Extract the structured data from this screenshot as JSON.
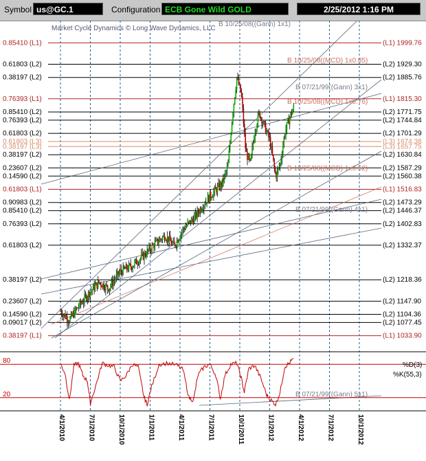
{
  "header": {
    "symbol_label": "Symbol",
    "symbol_value": "us@GC.1",
    "config_label": "Configuration",
    "config_value": "ECB Gone Wild GOLD",
    "datetime": "2/25/2012 1:16 PM"
  },
  "colors": {
    "l1": "#b22222",
    "l2": "#000000",
    "l3": "#d98c6a",
    "price_up": "#00b000",
    "price_down": "#c00000",
    "oscillator": "#c00000",
    "grid": "#1f5f8b",
    "annotation_gray": "#7a7a8a",
    "annotation_red": "#c87060"
  },
  "chart_data": {
    "type": "candlestick",
    "title": "Market Cycle Dynamics © Long Wave Dynamics, LLC",
    "ylim": [
      990,
      2055
    ],
    "x_ticks": [
      "4/1/2010",
      "7/1/2010",
      "10/1/2010",
      "1/1/2011",
      "4/1/2011",
      "7/1/2011",
      "10/1/2011",
      "1/1/2012",
      "4/1/2012",
      "7/1/2012",
      "10/1/2012"
    ],
    "levels": [
      {
        "fib": "0.85410",
        "tag": "L1",
        "price": 1999.76,
        "right": "(L1) 1999.76"
      },
      {
        "fib": "0.61803",
        "tag": "L2",
        "price": 1929.3,
        "right": "(L2) 1929.30"
      },
      {
        "fib": "0.38197",
        "tag": "L2",
        "price": 1885.76,
        "right": "(L2) 1885.76"
      },
      {
        "fib": "0.76393",
        "tag": "L1",
        "price": 1815.3,
        "right": "(L1) 1815.30"
      },
      {
        "fib": "0.85410",
        "tag": "L2",
        "price": 1771.75,
        "right": "(L2) 1771.75"
      },
      {
        "fib": "0.76393",
        "tag": "L2",
        "price": 1744.84,
        "right": "(L2) 1744.84"
      },
      {
        "fib": "0.61803",
        "tag": "L2",
        "price": 1701.29,
        "right": "(L2) 1701.29"
      },
      {
        "fib": "0.61803",
        "tag": "L3",
        "price": 1674.38,
        "right": "(L3) 1674.38"
      },
      {
        "fib": "0.38197",
        "tag": "L3",
        "price": 1657.75,
        "right": "(L3) 1657.75"
      },
      {
        "fib": "0.38197",
        "tag": "L2",
        "price": 1630.84,
        "right": "(L2) 1630.84"
      },
      {
        "fib": "0.23607",
        "tag": "L2",
        "price": 1587.29,
        "right": "(L2) 1587.29"
      },
      {
        "fib": "0.14590",
        "tag": "L2",
        "price": 1560.38,
        "right": "(L2) 1560.38"
      },
      {
        "fib": "0.61803",
        "tag": "L1",
        "price": 1516.83,
        "right": "(L1) 1516.83"
      },
      {
        "fib": "0.90983",
        "tag": "L2",
        "price": 1473.29,
        "right": "(L2) 1473.29"
      },
      {
        "fib": "0.85410",
        "tag": "L2",
        "price": 1446.37,
        "right": "(L2) 1446.37"
      },
      {
        "fib": "0.76393",
        "tag": "L2",
        "price": 1402.83,
        "right": "(L2) 1402.83"
      },
      {
        "fib": "0.61803",
        "tag": "L2",
        "price": 1332.37,
        "right": "(L2) 1332.37"
      },
      {
        "fib": "0.38197",
        "tag": "L2",
        "price": 1218.36,
        "right": "(L2) 1218.36"
      },
      {
        "fib": "0.23607",
        "tag": "L2",
        "price": 1147.9,
        "right": "(L2) 1147.90"
      },
      {
        "fib": "0.14590",
        "tag": "L2",
        "price": 1104.36,
        "right": "(L2) 1104.36"
      },
      {
        "fib": "0.09017",
        "tag": "L2",
        "price": 1077.45,
        "right": "(L2) 1077.45"
      },
      {
        "fib": "0.38197",
        "tag": "L1",
        "price": 1033.9,
        "right": "(L1) 1033.90"
      }
    ],
    "annotations": [
      {
        "text": "B 10/25/08((Gann) 1x1)",
        "color": "gray"
      },
      {
        "text": "B 10/25/08((MCD) 1x0.85)",
        "color": "red"
      },
      {
        "text": "B 07/21/99((Gann) 3x1)",
        "color": "gray"
      },
      {
        "text": "B 10/25/08((MCD) 1x0.76)",
        "color": "red"
      },
      {
        "text": "B 10/25/08((MCD) 1x0.62)",
        "color": "red"
      },
      {
        "text": "B 07/21/99((Gann) 4x1)",
        "color": "gray"
      },
      {
        "text": "B 07/21/99((Gann) 5x1)",
        "color": "gray"
      }
    ],
    "price_path": [
      [
        0.0,
        1115
      ],
      [
        0.3,
        1085
      ],
      [
        0.6,
        1130
      ],
      [
        1.0,
        1180
      ],
      [
        1.3,
        1210
      ],
      [
        1.6,
        1190
      ],
      [
        2.0,
        1245
      ],
      [
        2.4,
        1265
      ],
      [
        2.8,
        1300
      ],
      [
        3.2,
        1340
      ],
      [
        3.5,
        1365
      ],
      [
        3.8,
        1330
      ],
      [
        4.1,
        1385
      ],
      [
        4.5,
        1425
      ],
      [
        4.8,
        1470
      ],
      [
        5.1,
        1505
      ],
      [
        5.4,
        1535
      ],
      [
        5.6,
        1590
      ],
      [
        5.75,
        1760
      ],
      [
        5.9,
        1885
      ],
      [
        6.05,
        1830
      ],
      [
        6.2,
        1640
      ],
      [
        6.35,
        1600
      ],
      [
        6.5,
        1710
      ],
      [
        6.65,
        1770
      ],
      [
        6.8,
        1730
      ],
      [
        7.0,
        1680
      ],
      [
        7.2,
        1560
      ],
      [
        7.35,
        1600
      ],
      [
        7.5,
        1700
      ],
      [
        7.65,
        1750
      ],
      [
        7.8,
        1785
      ]
    ],
    "oscillator": {
      "labels": [
        "80",
        "20"
      ],
      "legend_d": "%D(3)",
      "legend_k": "%K(55,3)",
      "k_path": [
        [
          0.0,
          80
        ],
        [
          0.15,
          65
        ],
        [
          0.3,
          15
        ],
        [
          0.45,
          78
        ],
        [
          0.6,
          82
        ],
        [
          0.75,
          60
        ],
        [
          0.9,
          50
        ],
        [
          1.0,
          10
        ],
        [
          1.2,
          45
        ],
        [
          1.4,
          82
        ],
        [
          1.6,
          78
        ],
        [
          1.8,
          75
        ],
        [
          2.0,
          50
        ],
        [
          2.2,
          60
        ],
        [
          2.4,
          80
        ],
        [
          2.6,
          75
        ],
        [
          2.8,
          20
        ],
        [
          2.9,
          8
        ],
        [
          3.05,
          40
        ],
        [
          3.3,
          80
        ],
        [
          3.6,
          82
        ],
        [
          3.9,
          78
        ],
        [
          4.1,
          70
        ],
        [
          4.3,
          20
        ],
        [
          4.45,
          15
        ],
        [
          4.6,
          60
        ],
        [
          4.8,
          75
        ],
        [
          5.0,
          80
        ],
        [
          5.2,
          60
        ],
        [
          5.35,
          18
        ],
        [
          5.5,
          60
        ],
        [
          5.7,
          80
        ],
        [
          5.9,
          82
        ],
        [
          6.05,
          55
        ],
        [
          6.15,
          30
        ],
        [
          6.3,
          72
        ],
        [
          6.5,
          78
        ],
        [
          6.7,
          55
        ],
        [
          6.9,
          25
        ],
        [
          7.05,
          15
        ],
        [
          7.2,
          8
        ],
        [
          7.35,
          30
        ],
        [
          7.5,
          75
        ],
        [
          7.65,
          82
        ],
        [
          7.8,
          90
        ]
      ]
    }
  }
}
